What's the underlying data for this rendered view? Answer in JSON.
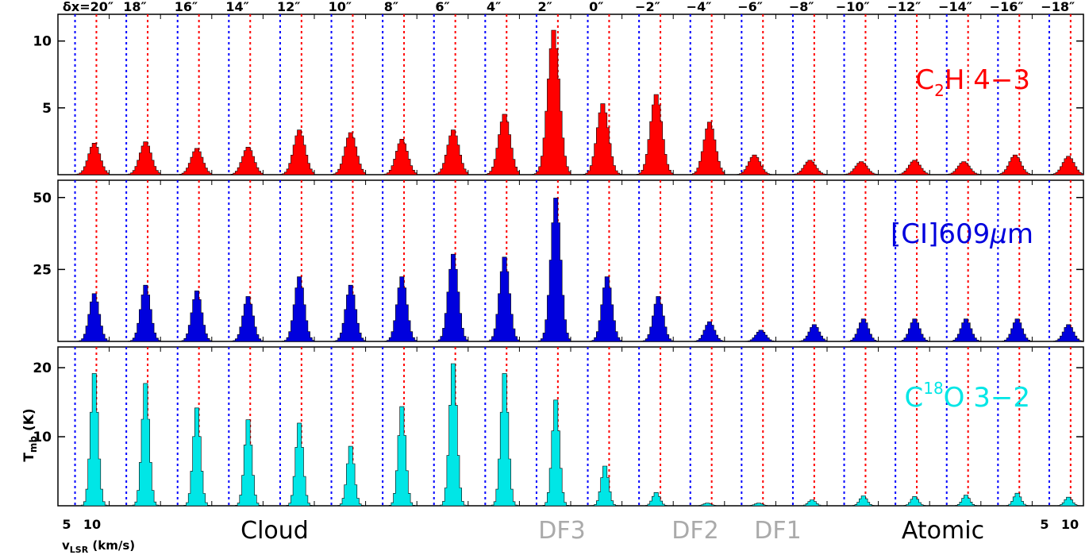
{
  "offset_labels": [
    "δx=20″",
    "18″",
    "16″",
    "14″",
    "12″",
    "10″",
    "8″",
    "6″",
    "4″",
    "2″",
    "0″",
    "−2″",
    "−4″",
    "−6″",
    "−8″",
    "−10″",
    "−12″",
    "−14″",
    "−16″",
    "−18″"
  ],
  "region_labels": [
    {
      "text": "Cloud",
      "color": "#000000"
    },
    {
      "text": "DF3",
      "color": "#aaaaaa"
    },
    {
      "text": "DF2",
      "color": "#aaaaaa"
    },
    {
      "text": "DF1",
      "color": "#aaaaaa"
    },
    {
      "text": "Atomic",
      "color": "#000000"
    }
  ],
  "y_axis_label": {
    "main": "T",
    "sub": "mb",
    "unit": " (K)"
  },
  "x_axis_label": {
    "main": "v",
    "sub": "LSR",
    "unit": " (km/s)"
  },
  "x_ticks_left": [
    "5",
    "10"
  ],
  "x_ticks_right": [
    "5",
    "10"
  ],
  "colors": {
    "c2h": "#ff0000",
    "ci": "#0000dd",
    "c18o": "#00e6e6",
    "blue_line": "#0000ff",
    "red_line": "#ff0000",
    "gray_label": "#aaaaaa"
  },
  "chart_data": [
    {
      "type": "bar",
      "panel": "top",
      "species": {
        "main": "C",
        "sub": "2",
        "rest": "H 4−3"
      },
      "color": "#ff0000",
      "ylim": [
        0,
        12
      ],
      "yticks": [
        "5",
        "10"
      ],
      "yticks_values": [
        5,
        10
      ],
      "xlabel": "v_LSR (km/s)",
      "ylabel": "T_mb (K)",
      "categories": [
        "δx=20″",
        "18″",
        "16″",
        "14″",
        "12″",
        "10″",
        "8″",
        "6″",
        "4″",
        "2″",
        "0″",
        "−2″",
        "−4″",
        "−6″",
        "−8″",
        "−10″",
        "−12″",
        "−14″",
        "−16″",
        "−18″"
      ],
      "values": [
        2.4,
        2.5,
        2.0,
        2.1,
        3.4,
        3.2,
        2.7,
        3.4,
        4.6,
        11.0,
        5.4,
        6.1,
        4.0,
        1.5,
        1.1,
        1.0,
        1.1,
        1.0,
        1.5,
        1.4
      ],
      "peak_velocity_kms": [
        10.5,
        10.5,
        10.5,
        10.5,
        10.5,
        10.5,
        10.5,
        10.5,
        10.5,
        10.0,
        9.5,
        10.0,
        10.5,
        9.0,
        10.0,
        10.0,
        10.5,
        10.0,
        10.0,
        10.5
      ]
    },
    {
      "type": "bar",
      "panel": "middle",
      "species": {
        "main": "[CI]609",
        "greek": "μ",
        "rest": "m"
      },
      "color": "#0000dd",
      "ylim": [
        0,
        56
      ],
      "yticks": [
        "25",
        "50"
      ],
      "yticks_values": [
        25,
        50
      ],
      "xlabel": "v_LSR (km/s)",
      "ylabel": "T_mb (K)",
      "categories": [
        "δx=20″",
        "18″",
        "16″",
        "14″",
        "12″",
        "10″",
        "8″",
        "6″",
        "4″",
        "2″",
        "0″",
        "−2″",
        "−4″",
        "−6″",
        "−8″",
        "−10″",
        "−12″",
        "−14″",
        "−16″",
        "−18″"
      ],
      "values": [
        17,
        20,
        18,
        16,
        23,
        20,
        23,
        31,
        30,
        51,
        23,
        16,
        7,
        4,
        6,
        8,
        8,
        8,
        8,
        6
      ],
      "peak_velocity_kms": [
        10.5,
        10.5,
        10.5,
        10.5,
        10.5,
        10.5,
        10.5,
        10.5,
        10.5,
        10.5,
        10.5,
        10.5,
        10.5,
        10.5,
        11.0,
        10.5,
        10.5,
        10.5,
        10.5,
        10.5
      ]
    },
    {
      "type": "bar",
      "panel": "bottom",
      "species": {
        "main": "C",
        "sup": "18",
        "rest": "O 3−2"
      },
      "color": "#00e6e6",
      "ylim": [
        0,
        23
      ],
      "yticks": [
        "10",
        "20"
      ],
      "yticks_values": [
        10,
        20
      ],
      "xlabel": "v_LSR (km/s)",
      "ylabel": "T_mb (K)",
      "categories": [
        "δx=20″",
        "18″",
        "16″",
        "14″",
        "12″",
        "10″",
        "8″",
        "6″",
        "4″",
        "2″",
        "0″",
        "−2″",
        "−4″",
        "−6″",
        "−8″",
        "−10″",
        "−12″",
        "−14″",
        "−16″",
        "−18″"
      ],
      "values": [
        20,
        18.5,
        14.8,
        13,
        12.5,
        9,
        15,
        21.5,
        20,
        16,
        6,
        2,
        0.4,
        0.4,
        0.9,
        1.5,
        1.4,
        1.6,
        1.9,
        1.3
      ],
      "peak_velocity_kms": [
        10.5,
        10.5,
        10.5,
        10.5,
        10.5,
        10.5,
        10.5,
        10.5,
        10.5,
        10.5,
        10.0,
        10.0,
        10.0,
        10.0,
        10.5,
        10.5,
        10.5,
        10.5,
        10.5,
        10.5
      ]
    }
  ]
}
